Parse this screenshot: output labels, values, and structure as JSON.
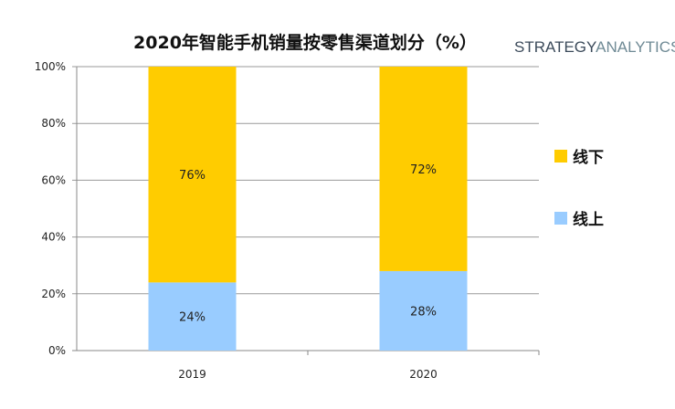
{
  "logo": {
    "part1": "STRATEGY",
    "part2": "ANALYTICS"
  },
  "chart_data": {
    "type": "bar",
    "stacked": true,
    "title": "2020年智能手机销量按零售渠道划分（%）",
    "categories": [
      "2019",
      "2020"
    ],
    "series": [
      {
        "name": "线上",
        "values": [
          24,
          28
        ],
        "labels": [
          "24%",
          "28%"
        ],
        "color": "#99ccff"
      },
      {
        "name": "线下",
        "values": [
          76,
          72
        ],
        "labels": [
          "76%",
          "72%"
        ],
        "color": "#ffcc00"
      }
    ],
    "ylim": [
      0,
      100
    ],
    "yticks": [
      "0%",
      "20%",
      "40%",
      "60%",
      "80%",
      "100%"
    ],
    "grid": true,
    "legend": "right",
    "xlabel": "",
    "ylabel": ""
  }
}
